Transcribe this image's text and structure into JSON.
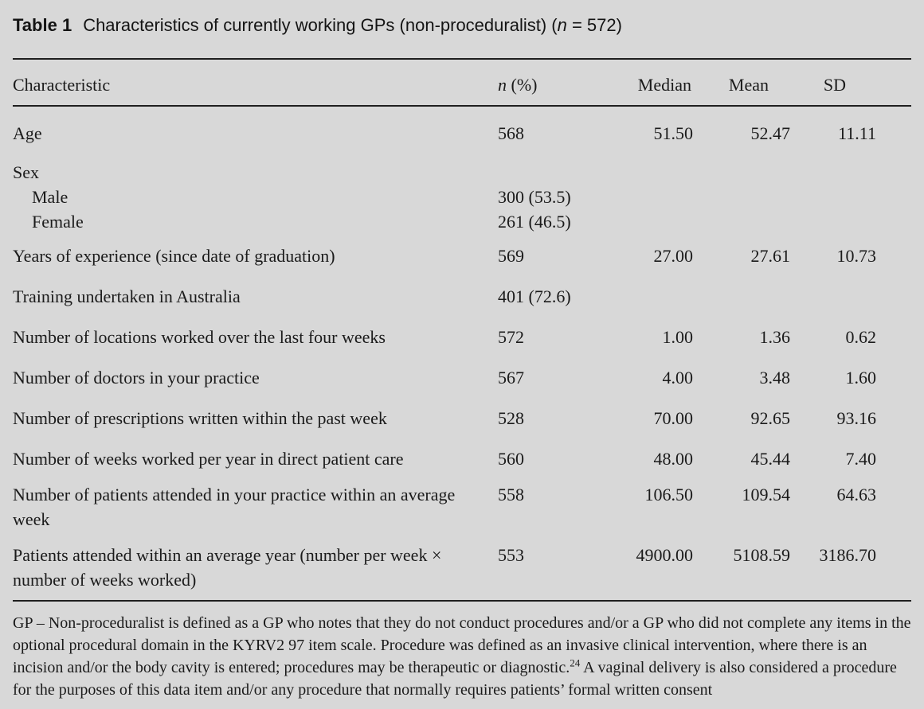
{
  "page": {
    "background_color": "#d8d8d8",
    "text_color": "#1b1b1b",
    "rule_color": "#1f1f1f"
  },
  "title": {
    "label": "Table 1",
    "text": "Characteristics of currently working GPs (non-proceduralist) (",
    "n_symbol": "n",
    "n_rest": " = 572)"
  },
  "table": {
    "header": {
      "characteristic": "Characteristic",
      "n_italic": "n",
      "n_rest": " (%)",
      "median": "Median",
      "mean": "Mean",
      "sd": "SD"
    },
    "rows": [
      {
        "label": "Age",
        "n": "568",
        "median": "51.50",
        "mean": "52.47",
        "sd": "11.11"
      },
      {
        "label": "Sex",
        "n": "",
        "median": "",
        "mean": "",
        "sd": ""
      },
      {
        "label": "Male",
        "n": "300 (53.5)",
        "median": "",
        "mean": "",
        "sd": ""
      },
      {
        "label": "Female",
        "n": "261 (46.5)",
        "median": "",
        "mean": "",
        "sd": ""
      },
      {
        "label": "Years of experience (since date of graduation)",
        "n": "569",
        "median": "27.00",
        "mean": "27.61",
        "sd": "10.73"
      },
      {
        "label": "Training undertaken in Australia",
        "n": "401 (72.6)",
        "median": "",
        "mean": "",
        "sd": ""
      },
      {
        "label": "Number of locations worked over the last four weeks",
        "n": "572",
        "median": "1.00",
        "mean": "1.36",
        "sd": "0.62"
      },
      {
        "label": "Number of doctors in your practice",
        "n": "567",
        "median": "4.00",
        "mean": "3.48",
        "sd": "1.60"
      },
      {
        "label": "Number of prescriptions written within the past week",
        "n": "528",
        "median": "70.00",
        "mean": "92.65",
        "sd": "93.16"
      },
      {
        "label": "Number of weeks worked per year in direct patient care",
        "n": "560",
        "median": "48.00",
        "mean": "45.44",
        "sd": "7.40"
      },
      {
        "label": "Number of patients attended in your practice within an average week",
        "n": "558",
        "median": "106.50",
        "mean": "109.54",
        "sd": "64.63"
      },
      {
        "label": "Patients attended within an average year (number per week × number of weeks worked)",
        "n": "553",
        "median": "4900.00",
        "mean": "5108.59",
        "sd": "3186.70"
      }
    ]
  },
  "footnote": {
    "part1": "GP – Non-proceduralist is defined as a GP who notes that they do not conduct procedures and/or a GP who did not complete any items in the optional procedural domain in the KYRV2 97 item scale. Procedure was defined as an invasive clinical intervention, where there is an incision and/or the body cavity is entered; procedures may be therapeutic or diagnostic.",
    "ref": "24",
    "part2": " A vaginal delivery is also considered a procedure for the purposes of this data item and/or any procedure that normally requires patients’ formal written consent"
  }
}
